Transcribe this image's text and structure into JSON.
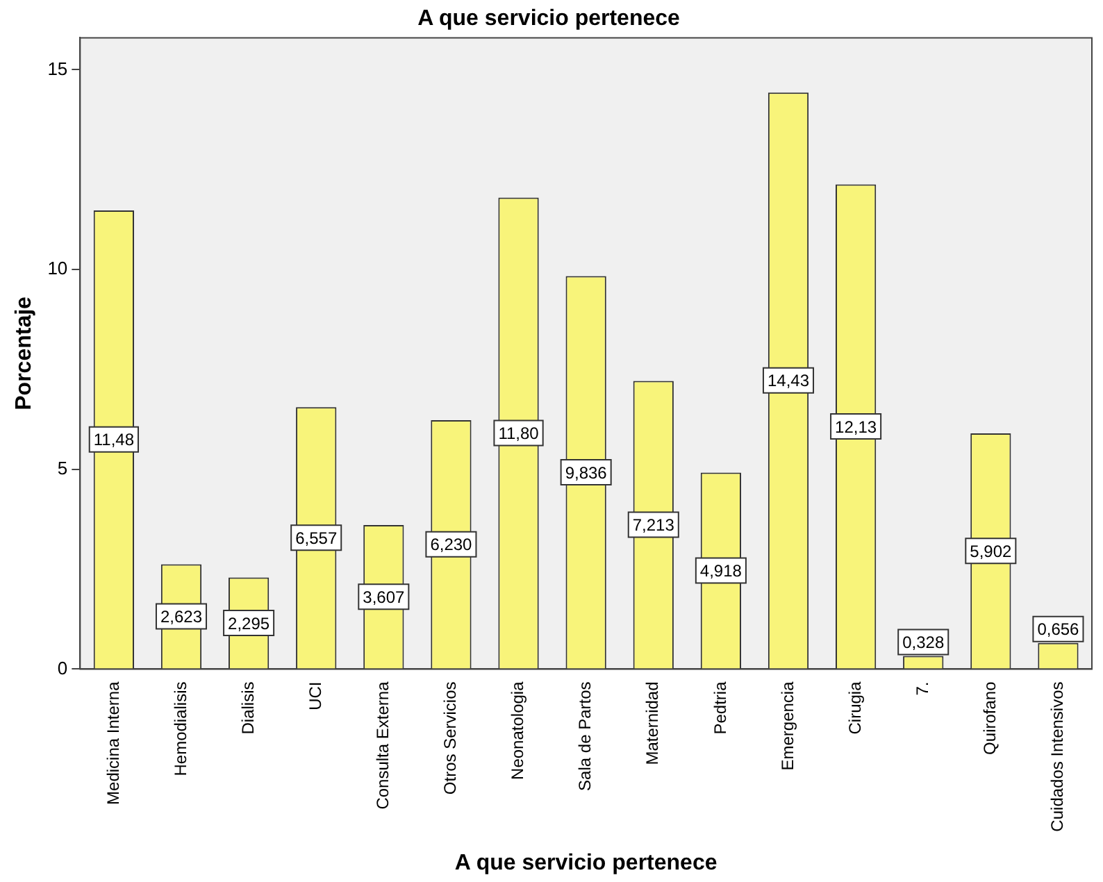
{
  "chart_data": {
    "type": "bar",
    "title": "A que servicio pertenece",
    "xlabel": "A que servicio pertenece",
    "ylabel": "Porcentaje",
    "categories": [
      "Medicina Interna",
      "Hemodialisis",
      "Dialisis",
      "UCI",
      "Consulta Externa",
      "Otros Servicios",
      "Neonatologia",
      "Sala de Partos",
      "Maternidad",
      "Pedtria",
      "Emergencia",
      "Cirugia",
      "7.",
      "Quirofano",
      "Cuidados Intensivos"
    ],
    "values": [
      11.48,
      2.623,
      2.295,
      6.557,
      3.607,
      6.23,
      11.8,
      9.836,
      7.213,
      4.918,
      14.43,
      12.13,
      0.328,
      5.902,
      0.656
    ],
    "value_labels": [
      "11,48",
      "2,623",
      "2,295",
      "6,557",
      "3,607",
      "6,230",
      "11,80",
      "9,836",
      "7,213",
      "4,918",
      "14,43",
      "12,13",
      "0,328",
      "5,902",
      "0,656"
    ],
    "color": "#f8f47a",
    "ylim": [
      0,
      15.8
    ],
    "yticks": [
      0,
      5,
      10,
      15
    ],
    "grid": false,
    "legend": false
  }
}
